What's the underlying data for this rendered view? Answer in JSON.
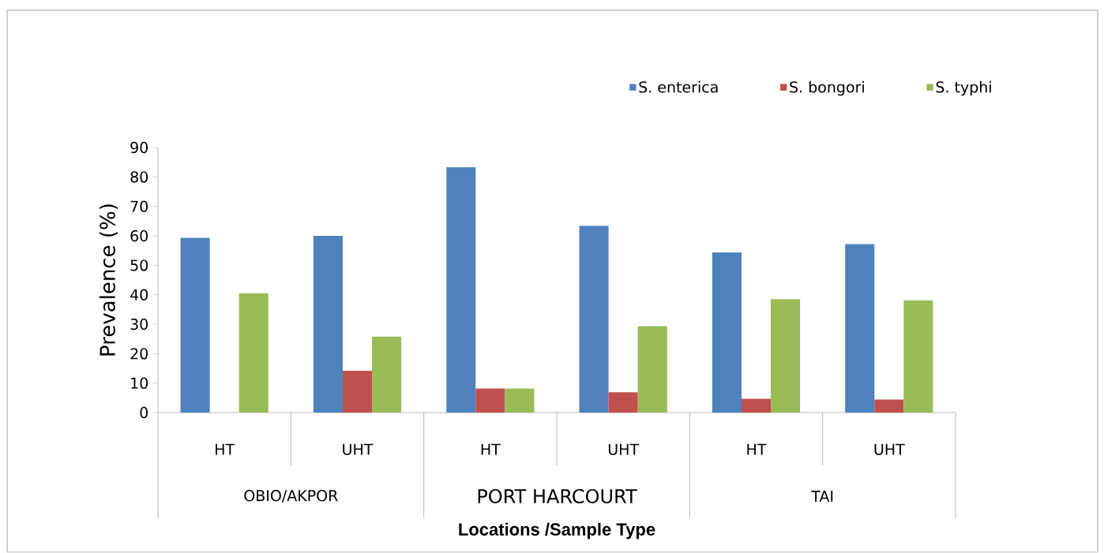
{
  "chart_data": {
    "type": "bar",
    "xlabel": "Locations /Sample Type",
    "ylabel": "Prevalence (%)",
    "categories": [
      "HT",
      "UHT",
      "HT",
      "UHT",
      "HT",
      "UHT"
    ],
    "annotations": [
      "OBIO/AKPOR",
      "PORT HARCOURT",
      "TAI"
    ],
    "series": [
      {
        "name": "S. enterica",
        "color": "#4f81bd",
        "values": [
          59.3,
          60,
          83.3,
          63.4,
          54.4,
          57.2
        ]
      },
      {
        "name": "S. bongori",
        "color": "#c0504d",
        "values": [
          0,
          14.2,
          8.2,
          6.9,
          4.7,
          4.4
        ]
      },
      {
        "name": "S. typhi",
        "color": "#9bbb59",
        "values": [
          40.5,
          25.8,
          8.2,
          29.3,
          38.5,
          38.1
        ]
      }
    ],
    "ylim": [
      0,
      90
    ],
    "yticks": [
      0,
      10,
      20,
      30,
      40,
      50,
      60,
      70,
      80,
      90
    ],
    "grid": false,
    "legend": "top right"
  }
}
